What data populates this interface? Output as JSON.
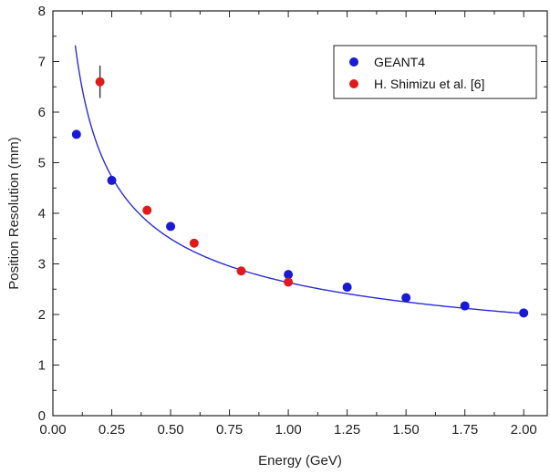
{
  "chart_data": {
    "type": "scatter",
    "xlabel": "Energy (GeV)",
    "ylabel": "Position Resolution (mm)",
    "xlim": [
      0.0,
      2.1
    ],
    "ylim": [
      0,
      8
    ],
    "x_ticks": [
      "0.00",
      "0.25",
      "0.50",
      "0.75",
      "1.00",
      "1.25",
      "1.50",
      "1.75",
      "2.00"
    ],
    "y_ticks": [
      "0",
      "1",
      "2",
      "3",
      "4",
      "5",
      "6",
      "7",
      "8"
    ],
    "grid": false,
    "legend_position": "top-right",
    "series": [
      {
        "name": "GEANT4",
        "color": "#1a1ad6",
        "points": [
          {
            "x": 0.1,
            "y": 5.56
          },
          {
            "x": 0.25,
            "y": 4.65
          },
          {
            "x": 0.5,
            "y": 3.74
          },
          {
            "x": 1.0,
            "y": 2.79
          },
          {
            "x": 1.25,
            "y": 2.54
          },
          {
            "x": 1.5,
            "y": 2.33
          },
          {
            "x": 1.75,
            "y": 2.17
          },
          {
            "x": 2.0,
            "y": 2.03
          }
        ]
      },
      {
        "name": "H. Shimizu et al. [6]",
        "color": "#e01a1a",
        "points": [
          {
            "x": 0.2,
            "y": 6.6,
            "err": 0.32
          },
          {
            "x": 0.4,
            "y": 4.06
          },
          {
            "x": 0.6,
            "y": 3.41
          },
          {
            "x": 0.8,
            "y": 2.86
          },
          {
            "x": 1.0,
            "y": 2.64
          }
        ]
      }
    ],
    "fit_curve": {
      "color": "#2b2bd8",
      "points": [
        {
          "x": 0.095,
          "y": 8.0
        },
        {
          "x": 0.11,
          "y": 7.37
        },
        {
          "x": 0.13,
          "y": 6.73
        },
        {
          "x": 0.15,
          "y": 6.22
        },
        {
          "x": 0.18,
          "y": 5.63
        },
        {
          "x": 0.21,
          "y": 5.18
        },
        {
          "x": 0.25,
          "y": 4.72
        },
        {
          "x": 0.3,
          "y": 4.3
        },
        {
          "x": 0.35,
          "y": 3.97
        },
        {
          "x": 0.4,
          "y": 3.71
        },
        {
          "x": 0.5,
          "y": 3.33
        },
        {
          "x": 0.6,
          "y": 3.06
        },
        {
          "x": 0.7,
          "y": 2.85
        },
        {
          "x": 0.8,
          "y": 2.67
        },
        {
          "x": 0.9,
          "y": 2.53
        },
        {
          "x": 1.0,
          "y": 2.77
        },
        {
          "x": 1.25,
          "y": 2.5
        },
        {
          "x": 1.5,
          "y": 2.3
        },
        {
          "x": 1.75,
          "y": 2.15
        },
        {
          "x": 2.0,
          "y": 2.02
        }
      ]
    }
  }
}
